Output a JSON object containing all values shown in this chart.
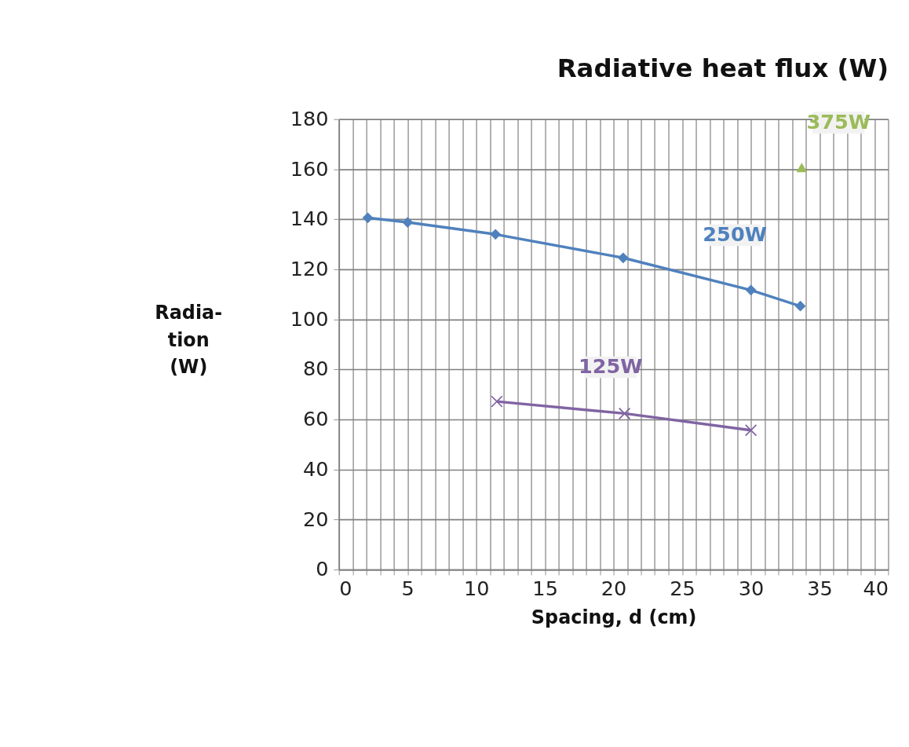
{
  "chart_data": {
    "type": "line",
    "title": "Radiative heat flux (W)",
    "xlabel": "Spacing, d (cm)",
    "ylabel": "Radia-\ntion\n(W)",
    "series": [
      {
        "name": "250W",
        "color": "#4f81bd",
        "marker": "diamond",
        "x": [
          2.1,
          5.0,
          11.4,
          20.7,
          30.0,
          33.6
        ],
        "values": [
          140.6,
          138.8,
          134,
          124.6,
          111.7,
          105.3
        ]
      },
      {
        "name": "125W",
        "color": "#8064a2",
        "marker": "cross",
        "x": [
          11.5,
          20.8,
          30.0
        ],
        "values": [
          67.2,
          62.4,
          55.7
        ]
      },
      {
        "name": "375W",
        "color": "#9bbb59",
        "marker": "triangle",
        "x": [
          33.7
        ],
        "values": [
          160.7
        ]
      }
    ],
    "xlim": [
      0,
      40
    ],
    "ylim": [
      0,
      180
    ],
    "xticks": [
      0,
      {
        "value": 1,
        "label": null
      },
      {
        "value": 2,
        "label": null
      },
      {
        "value": 3,
        "label": null
      },
      {
        "value": 4,
        "label": null
      },
      5,
      {
        "value": 6,
        "label": null
      },
      {
        "value": 7,
        "label": null
      },
      {
        "value": 8,
        "label": null
      },
      {
        "value": 9,
        "label": null
      },
      10,
      {
        "value": 11,
        "label": null
      },
      {
        "value": 12,
        "label": null
      },
      {
        "value": 13,
        "label": null
      },
      {
        "value": 14,
        "label": null
      },
      15,
      {
        "value": 16,
        "label": null
      },
      {
        "value": 17,
        "label": null
      },
      {
        "value": 18,
        "label": null
      },
      {
        "value": 19,
        "label": null
      },
      20,
      {
        "value": 21,
        "label": null
      },
      {
        "value": 22,
        "label": null
      },
      {
        "value": 23,
        "label": null
      },
      {
        "value": 24,
        "label": null
      },
      25,
      {
        "value": 26,
        "label": null
      },
      {
        "value": 27,
        "label": null
      },
      {
        "value": 28,
        "label": null
      },
      {
        "value": 29,
        "label": null
      },
      30,
      {
        "value": 31,
        "label": null
      },
      {
        "value": 32,
        "label": null
      },
      {
        "value": 33,
        "label": null
      },
      {
        "value": 34,
        "label": null
      },
      35,
      {
        "value": 36,
        "label": null
      },
      {
        "value": 37,
        "label": null
      },
      {
        "value": 38,
        "label": null
      },
      {
        "value": 39,
        "label": null
      },
      40
    ],
    "yticks": [
      0,
      20,
      40,
      60,
      80,
      100,
      120,
      140,
      160,
      180
    ],
    "grid": true,
    "line_style": "solid"
  }
}
